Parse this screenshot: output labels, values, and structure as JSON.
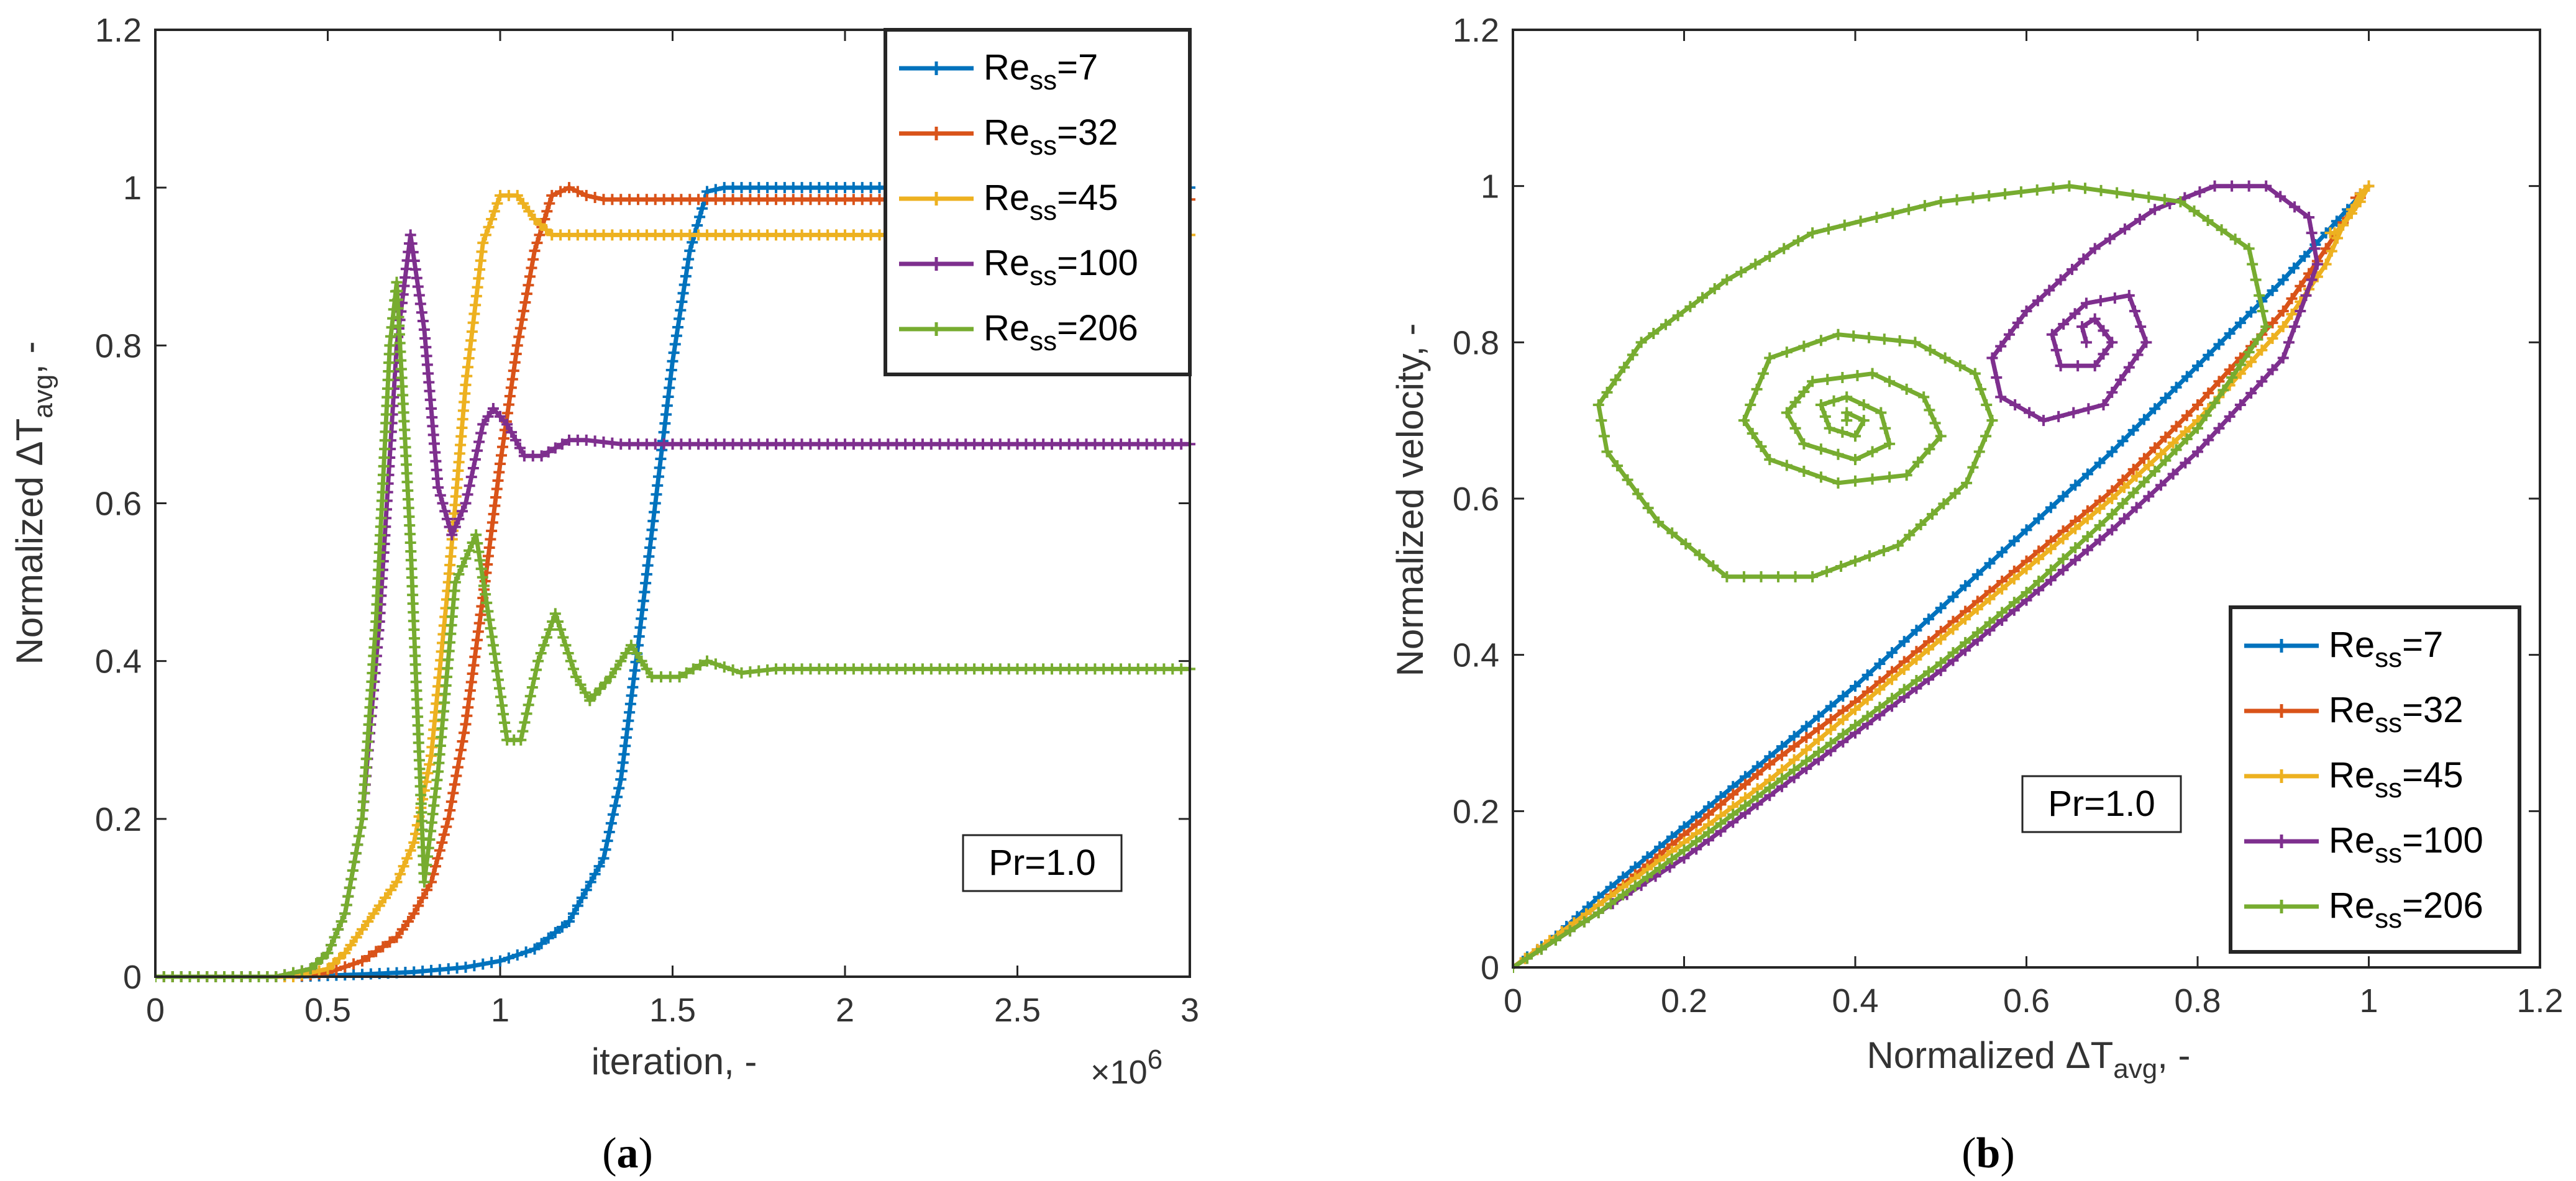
{
  "colors": {
    "Re7": "#0072BD",
    "Re32": "#D95319",
    "Re45": "#EDB120",
    "Re100": "#7E2F8E",
    "Re206": "#77AC30"
  },
  "chart_data": [
    {
      "type": "line",
      "panel_caption": "a",
      "annotation": "Pr=1.0",
      "xlabel": "iteration, -",
      "ylabel": "Normalized ΔT",
      "ylabel_sub": "avg",
      "ylabel_tail": ", -",
      "x_exponent_label": "×10",
      "x_exponent": "6",
      "xlim": [
        0,
        3
      ],
      "ylim": [
        0,
        1.2
      ],
      "xticks": [
        "0",
        "0.5",
        "1",
        "1.5",
        "2",
        "2.5",
        "3"
      ],
      "yticks": [
        "0",
        "0.2",
        "0.4",
        "0.6",
        "0.8",
        "1",
        "1.2"
      ],
      "legend_position": "top-right",
      "series": [
        {
          "name": "Re",
          "sub": "ss",
          "label_tail": "=7",
          "color_key": "Re7",
          "x": [
            0,
            0.4,
            0.6,
            0.75,
            0.9,
            1.0,
            1.1,
            1.2,
            1.3,
            1.35,
            1.4,
            1.45,
            1.5,
            1.55,
            1.6,
            1.65,
            2.0,
            3.0
          ],
          "y": [
            0,
            0,
            0.003,
            0.006,
            0.012,
            0.02,
            0.035,
            0.07,
            0.15,
            0.25,
            0.42,
            0.6,
            0.78,
            0.92,
            0.995,
            1.0,
            1.0,
            1.0
          ]
        },
        {
          "name": "Re",
          "sub": "ss",
          "label_tail": "=32",
          "color_key": "Re32",
          "x": [
            0,
            0.4,
            0.5,
            0.6,
            0.7,
            0.75,
            0.8,
            0.85,
            0.9,
            0.95,
            1.0,
            1.05,
            1.1,
            1.15,
            1.2,
            1.25,
            1.3,
            1.4,
            2.0,
            3.0
          ],
          "y": [
            0,
            0,
            0.005,
            0.02,
            0.05,
            0.08,
            0.12,
            0.2,
            0.32,
            0.48,
            0.65,
            0.8,
            0.92,
            0.99,
            1.0,
            0.99,
            0.985,
            0.985,
            0.985,
            0.985
          ]
        },
        {
          "name": "Re",
          "sub": "ss",
          "label_tail": "=45",
          "color_key": "Re45",
          "x": [
            0,
            0.4,
            0.5,
            0.55,
            0.6,
            0.65,
            0.7,
            0.75,
            0.8,
            0.85,
            0.9,
            0.95,
            1.0,
            1.05,
            1.1,
            1.15,
            1.2,
            1.3,
            2.0,
            3.0
          ],
          "y": [
            0,
            0,
            0.01,
            0.03,
            0.06,
            0.09,
            0.12,
            0.17,
            0.28,
            0.5,
            0.75,
            0.93,
            0.99,
            0.99,
            0.96,
            0.94,
            0.94,
            0.94,
            0.94,
            0.94
          ]
        },
        {
          "name": "Re",
          "sub": "ss",
          "label_tail": "=100",
          "color_key": "Re100",
          "x": [
            0,
            0.35,
            0.45,
            0.5,
            0.55,
            0.6,
            0.65,
            0.7,
            0.74,
            0.78,
            0.82,
            0.86,
            0.9,
            0.95,
            0.98,
            1.02,
            1.07,
            1.12,
            1.2,
            1.25,
            1.35,
            1.5,
            2.0,
            3.0
          ],
          "y": [
            0,
            0,
            0.01,
            0.03,
            0.08,
            0.2,
            0.45,
            0.8,
            0.94,
            0.82,
            0.62,
            0.56,
            0.6,
            0.7,
            0.72,
            0.7,
            0.66,
            0.66,
            0.68,
            0.68,
            0.675,
            0.675,
            0.675,
            0.675
          ]
        },
        {
          "name": "Re",
          "sub": "ss",
          "label_tail": "=206",
          "color_key": "Re206",
          "x": [
            0,
            0.35,
            0.45,
            0.5,
            0.55,
            0.6,
            0.64,
            0.68,
            0.7,
            0.74,
            0.78,
            0.82,
            0.87,
            0.93,
            0.98,
            1.02,
            1.06,
            1.11,
            1.16,
            1.22,
            1.26,
            1.32,
            1.38,
            1.44,
            1.52,
            1.6,
            1.7,
            1.8,
            2.0,
            3.0
          ],
          "y": [
            0,
            0,
            0.01,
            0.03,
            0.08,
            0.2,
            0.45,
            0.8,
            0.88,
            0.55,
            0.12,
            0.26,
            0.5,
            0.56,
            0.42,
            0.3,
            0.3,
            0.4,
            0.46,
            0.38,
            0.35,
            0.38,
            0.42,
            0.38,
            0.38,
            0.4,
            0.385,
            0.39,
            0.39,
            0.39
          ]
        }
      ]
    },
    {
      "type": "line",
      "panel_caption": "b",
      "annotation": "Pr=1.0",
      "xlabel": "Normalized ΔT",
      "xlabel_sub": "avg",
      "xlabel_tail": ", -",
      "ylabel": "Normalized velocity, -",
      "xlim": [
        0,
        1.2
      ],
      "ylim": [
        0,
        1.2
      ],
      "xticks": [
        "0",
        "0.2",
        "0.4",
        "0.6",
        "0.8",
        "1",
        "1.2"
      ],
      "yticks": [
        "0",
        "0.2",
        "0.4",
        "0.6",
        "0.8",
        "1",
        "1.2"
      ],
      "legend_position": "bottom-right",
      "series": [
        {
          "name": "Re",
          "sub": "ss",
          "label_tail": "=7",
          "color_key": "Re7",
          "x": [
            0,
            0.05,
            0.1,
            0.2,
            0.3,
            0.4,
            0.5,
            0.6,
            0.7,
            0.8,
            0.9,
            0.95,
            1.0
          ],
          "y": [
            0,
            0.04,
            0.09,
            0.18,
            0.27,
            0.36,
            0.46,
            0.56,
            0.66,
            0.77,
            0.88,
            0.94,
            1.0
          ]
        },
        {
          "name": "Re",
          "sub": "ss",
          "label_tail": "=32",
          "color_key": "Re32",
          "x": [
            0,
            0.1,
            0.2,
            0.3,
            0.4,
            0.5,
            0.6,
            0.7,
            0.8,
            0.9,
            0.95,
            0.98,
            1.0,
            0.99,
            0.985
          ],
          "y": [
            0,
            0.08,
            0.17,
            0.26,
            0.34,
            0.43,
            0.52,
            0.61,
            0.72,
            0.84,
            0.92,
            0.97,
            1.0,
            0.99,
            0.985
          ]
        },
        {
          "name": "Re",
          "sub": "ss",
          "label_tail": "=45",
          "color_key": "Re45",
          "x": [
            0,
            0.1,
            0.2,
            0.3,
            0.4,
            0.5,
            0.6,
            0.7,
            0.8,
            0.9,
            0.95,
            0.97,
            0.99,
            1.0,
            0.99,
            0.97,
            0.96,
            0.955
          ],
          "y": [
            0,
            0.08,
            0.16,
            0.24,
            0.33,
            0.42,
            0.51,
            0.6,
            0.7,
            0.82,
            0.9,
            0.95,
            0.99,
            1.0,
            0.98,
            0.95,
            0.94,
            0.94
          ]
        },
        {
          "name": "Re",
          "sub": "ss",
          "label_tail": "=100",
          "color_key": "Re100",
          "x": [
            0,
            0.1,
            0.2,
            0.3,
            0.4,
            0.5,
            0.6,
            0.7,
            0.8,
            0.9,
            0.94,
            0.93,
            0.88,
            0.82,
            0.75,
            0.68,
            0.6,
            0.56,
            0.57,
            0.62,
            0.69,
            0.74,
            0.72,
            0.67,
            0.63,
            0.64,
            0.68,
            0.7,
            0.68,
            0.665,
            0.67
          ],
          "y": [
            0,
            0.07,
            0.14,
            0.22,
            0.3,
            0.38,
            0.47,
            0.56,
            0.66,
            0.78,
            0.9,
            0.96,
            1.0,
            1.0,
            0.97,
            0.92,
            0.84,
            0.78,
            0.73,
            0.7,
            0.72,
            0.8,
            0.86,
            0.85,
            0.81,
            0.77,
            0.77,
            0.8,
            0.83,
            0.82,
            0.8
          ]
        },
        {
          "name": "Re",
          "sub": "ss",
          "label_tail": "=206",
          "color_key": "Re206",
          "x": [
            0,
            0.1,
            0.2,
            0.3,
            0.4,
            0.5,
            0.6,
            0.7,
            0.8,
            0.88,
            0.86,
            0.78,
            0.65,
            0.5,
            0.35,
            0.25,
            0.15,
            0.1,
            0.11,
            0.17,
            0.25,
            0.35,
            0.45,
            0.53,
            0.56,
            0.54,
            0.47,
            0.38,
            0.3,
            0.27,
            0.3,
            0.38,
            0.46,
            0.5,
            0.48,
            0.42,
            0.35,
            0.32,
            0.34,
            0.4,
            0.44,
            0.43,
            0.39,
            0.36,
            0.37,
            0.4,
            0.41,
            0.39,
            0.39
          ],
          "y": [
            0,
            0.07,
            0.15,
            0.23,
            0.31,
            0.39,
            0.48,
            0.58,
            0.69,
            0.82,
            0.92,
            0.98,
            1.0,
            0.98,
            0.94,
            0.88,
            0.8,
            0.72,
            0.66,
            0.57,
            0.5,
            0.5,
            0.54,
            0.62,
            0.7,
            0.76,
            0.8,
            0.81,
            0.78,
            0.7,
            0.65,
            0.62,
            0.63,
            0.68,
            0.73,
            0.76,
            0.75,
            0.71,
            0.67,
            0.65,
            0.67,
            0.71,
            0.73,
            0.72,
            0.69,
            0.68,
            0.7,
            0.71,
            0.7
          ]
        }
      ]
    }
  ]
}
